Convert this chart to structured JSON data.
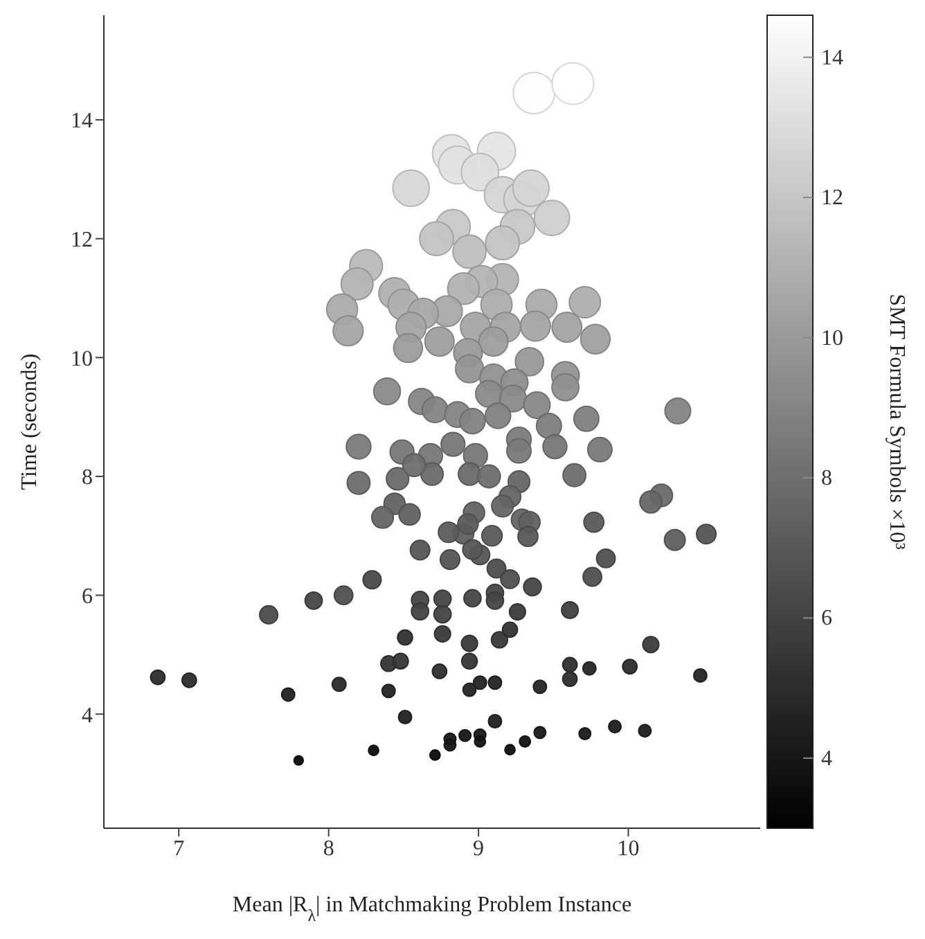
{
  "chart_data": {
    "type": "bubble",
    "xlabel": "Mean |R$_{λ}$| in Matchmaking Problem Instance",
    "ylabel": "Time (seconds)",
    "clabel": "SMT Formula Symbols ×10³",
    "xlim": [
      6.5,
      10.88
    ],
    "xticks": [
      7,
      8,
      9,
      10
    ],
    "ylim": [
      2.08,
      15.76
    ],
    "yticks": [
      4,
      6,
      8,
      10,
      12,
      14
    ],
    "clim": [
      3.0,
      14.6
    ],
    "cticks": [
      4,
      6,
      8,
      10,
      12,
      14
    ],
    "marker": "circle",
    "x": [
      9.37,
      9.63,
      8.82,
      8.86,
      9.12,
      9.01,
      8.55,
      9.16,
      9.29,
      9.35,
      9.49,
      9.26,
      8.83,
      8.72,
      9.16,
      8.94,
      8.25,
      8.19,
      9.16,
      9.02,
      8.9,
      8.44,
      8.09,
      8.5,
      9.12,
      9.42,
      9.71,
      8.79,
      8.63,
      8.13,
      8.55,
      8.98,
      9.18,
      9.38,
      9.59,
      9.78,
      8.74,
      8.53,
      9.1,
      8.93,
      9.34,
      8.94,
      9.58,
      9.58,
      9.1,
      9.24,
      9.07,
      9.23,
      9.39,
      8.39,
      8.62,
      8.71,
      8.86,
      9.13,
      8.96,
      10.33,
      9.72,
      9.47,
      8.2,
      8.49,
      8.68,
      8.83,
      8.98,
      9.27,
      9.27,
      9.51,
      9.81,
      8.2,
      8.46,
      8.69,
      8.94,
      9.07,
      9.27,
      9.64,
      8.57,
      10.22,
      10.15,
      8.44,
      8.36,
      8.54,
      9.21,
      9.16,
      8.97,
      9.29,
      9.34,
      8.9,
      8.8,
      8.93,
      9.09,
      9.33,
      9.77,
      10.31,
      10.52,
      8.61,
      8.81,
      9.01,
      8.96,
      9.85,
      9.76,
      9.12,
      9.21,
      9.36,
      8.29,
      8.1,
      7.9,
      7.6,
      8.61,
      8.61,
      8.76,
      8.76,
      8.96,
      9.11,
      9.11,
      9.26,
      9.61,
      8.76,
      8.51,
      8.94,
      9.14,
      9.21,
      10.15,
      8.4,
      8.48,
      8.94,
      8.74,
      9.61,
      9.61,
      9.74,
      10.01,
      10.48,
      6.86,
      7.07,
      7.73,
      8.07,
      8.4,
      8.94,
      9.01,
      9.11,
      9.41,
      8.51,
      9.11,
      9.91,
      10.11,
      9.41,
      9.71,
      8.91,
      9.01,
      9.01,
      8.81,
      8.81,
      9.31,
      9.21,
      8.3,
      8.71,
      7.8
    ],
    "values": [
      14.45,
      14.61,
      13.43,
      13.24,
      13.47,
      13.12,
      12.85,
      12.74,
      12.66,
      12.85,
      12.35,
      12.2,
      12.2,
      12.0,
      11.93,
      11.78,
      11.54,
      11.24,
      11.31,
      11.28,
      11.16,
      11.08,
      10.81,
      10.89,
      10.89,
      10.89,
      10.93,
      10.78,
      10.74,
      10.45,
      10.51,
      10.51,
      10.51,
      10.53,
      10.51,
      10.31,
      10.27,
      10.16,
      10.27,
      10.08,
      9.93,
      9.81,
      9.7,
      9.5,
      9.66,
      9.58,
      9.39,
      9.31,
      9.2,
      9.43,
      9.26,
      9.12,
      9.04,
      9.02,
      8.93,
      9.1,
      8.97,
      8.85,
      8.5,
      8.41,
      8.35,
      8.54,
      8.35,
      8.62,
      8.43,
      8.5,
      8.45,
      7.89,
      7.96,
      8.04,
      8.04,
      8.0,
      7.91,
      8.02,
      8.19,
      7.68,
      7.57,
      7.54,
      7.31,
      7.36,
      7.66,
      7.5,
      7.39,
      7.27,
      7.23,
      7.04,
      7.06,
      7.2,
      7.0,
      6.99,
      7.23,
      6.93,
      7.03,
      6.76,
      6.6,
      6.68,
      6.77,
      6.62,
      6.31,
      6.45,
      6.27,
      6.14,
      6.26,
      6.0,
      5.91,
      5.67,
      5.92,
      5.73,
      5.94,
      5.68,
      5.95,
      6.04,
      5.91,
      5.72,
      5.75,
      5.35,
      5.29,
      5.19,
      5.25,
      5.42,
      5.17,
      4.85,
      4.89,
      4.89,
      4.72,
      4.83,
      4.59,
      4.77,
      4.8,
      4.65,
      4.62,
      4.57,
      4.33,
      4.5,
      4.39,
      4.41,
      4.53,
      4.53,
      4.46,
      3.95,
      3.88,
      3.79,
      3.72,
      3.69,
      3.67,
      3.64,
      3.65,
      3.54,
      3.58,
      3.48,
      3.54,
      3.4,
      3.39,
      3.31,
      3.22
    ],
    "cvalues": [
      14.5,
      14.6,
      13.4,
      13.3,
      13.4,
      13.1,
      12.8,
      12.7,
      12.7,
      12.7,
      12.4,
      12.1,
      12.1,
      11.9,
      11.9,
      11.7,
      11.5,
      11.2,
      11.2,
      11.2,
      11.1,
      11.0,
      10.8,
      10.9,
      10.9,
      10.8,
      10.9,
      10.7,
      10.7,
      10.5,
      10.5,
      10.5,
      10.5,
      10.5,
      10.4,
      10.3,
      10.2,
      10.1,
      10.2,
      10.0,
      9.9,
      9.8,
      9.7,
      9.5,
      9.6,
      9.5,
      9.3,
      9.3,
      9.2,
      9.3,
      9.1,
      9.0,
      9.0,
      8.9,
      8.9,
      9.0,
      8.8,
      8.7,
      8.6,
      8.4,
      8.4,
      8.4,
      8.4,
      8.6,
      8.5,
      8.4,
      8.5,
      8.0,
      7.8,
      7.8,
      7.8,
      8.0,
      7.6,
      8.0,
      8.0,
      7.8,
      7.7,
      7.5,
      7.6,
      7.4,
      7.6,
      7.6,
      7.5,
      7.5,
      7.4,
      7.3,
      7.2,
      7.2,
      7.1,
      7.0,
      7.0,
      7.3,
      6.8,
      6.9,
      6.8,
      6.9,
      6.9,
      6.6,
      6.6,
      6.5,
      6.6,
      6.2,
      6.3,
      6.6,
      6.1,
      6.4,
      6.1,
      6.0,
      6.1,
      6.0,
      6.1,
      6.1,
      6.1,
      5.7,
      5.9,
      5.6,
      5.2,
      5.6,
      5.6,
      5.3,
      5.7,
      5.4,
      5.4,
      5.4,
      5.1,
      5.1,
      5.1,
      4.7,
      5.0,
      4.7,
      5.0,
      5.0,
      4.5,
      4.9,
      4.6,
      4.6,
      4.6,
      4.6,
      4.7,
      4.5,
      4.5,
      4.3,
      4.3,
      4.1,
      4.2,
      4.0,
      4.1,
      3.9,
      4.0,
      4.0,
      3.8,
      3.6,
      3.6,
      3.5,
      3.3
    ],
    "sizes": [
      0.99,
      1.0,
      0.84,
      0.83,
      0.84,
      0.81,
      0.77,
      0.76,
      0.76,
      0.76,
      0.72,
      0.69,
      0.69,
      0.66,
      0.66,
      0.64,
      0.62,
      0.59,
      0.59,
      0.59,
      0.58,
      0.57,
      0.55,
      0.56,
      0.56,
      0.55,
      0.56,
      0.54,
      0.54,
      0.52,
      0.52,
      0.52,
      0.52,
      0.52,
      0.51,
      0.5,
      0.49,
      0.48,
      0.49,
      0.47,
      0.46,
      0.45,
      0.44,
      0.42,
      0.43,
      0.42,
      0.41,
      0.41,
      0.4,
      0.41,
      0.39,
      0.38,
      0.38,
      0.37,
      0.37,
      0.38,
      0.36,
      0.36,
      0.35,
      0.33,
      0.33,
      0.33,
      0.33,
      0.35,
      0.34,
      0.33,
      0.34,
      0.3,
      0.29,
      0.29,
      0.29,
      0.3,
      0.27,
      0.3,
      0.3,
      0.29,
      0.28,
      0.26,
      0.27,
      0.26,
      0.27,
      0.27,
      0.26,
      0.26,
      0.26,
      0.25,
      0.24,
      0.24,
      0.24,
      0.23,
      0.23,
      0.25,
      0.22,
      0.22,
      0.22,
      0.22,
      0.22,
      0.2,
      0.2,
      0.2,
      0.2,
      0.18,
      0.19,
      0.2,
      0.17,
      0.19,
      0.17,
      0.17,
      0.17,
      0.17,
      0.17,
      0.17,
      0.17,
      0.15,
      0.16,
      0.15,
      0.13,
      0.15,
      0.15,
      0.13,
      0.15,
      0.14,
      0.14,
      0.14,
      0.12,
      0.12,
      0.12,
      0.1,
      0.12,
      0.1,
      0.12,
      0.12,
      0.1,
      0.11,
      0.1,
      0.1,
      0.1,
      0.1,
      0.1,
      0.1,
      0.1,
      0.09,
      0.09,
      0.08,
      0.08,
      0.08,
      0.08,
      0.07,
      0.08,
      0.08,
      0.07,
      0.06,
      0.06,
      0.06,
      0.05
    ]
  }
}
